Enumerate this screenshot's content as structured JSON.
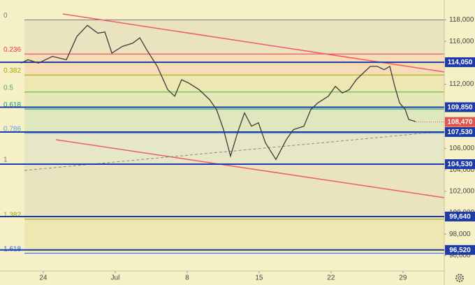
{
  "chart_data": {
    "type": "line",
    "color": "#3a3a3a",
    "x": [
      21.83,
      22.51,
      23.53,
      24.89,
      26.25,
      27.27,
      28.29,
      29.31,
      29.99,
      30.67,
      31.69,
      32.71,
      33.39,
      34.07,
      35.09,
      36.11,
      36.79,
      37.46,
      38.14,
      39.16,
      40.18,
      40.86,
      41.54,
      42.22,
      42.9,
      43.58,
      44.26,
      44.94,
      45.62,
      46.64,
      47.66,
      48.34,
      49.36,
      50.04,
      50.72,
      51.74,
      52.42,
      53.1,
      53.78,
      54.46,
      55.14,
      55.82,
      56.5,
      57.18,
      57.72,
      58.2,
      58.67,
      59.22,
      59.56,
      60.24
    ],
    "values": [
      113970,
      114280,
      113970,
      114590,
      114280,
      116450,
      117500,
      116760,
      116880,
      114900,
      115520,
      115830,
      116330,
      115210,
      113660,
      111490,
      110870,
      112420,
      112110,
      111490,
      110560,
      109630,
      107760,
      105280,
      107450,
      109320,
      108070,
      108390,
      106520,
      104970,
      106830,
      107760,
      108070,
      109630,
      110250,
      110870,
      111800,
      111180,
      111490,
      112420,
      113040,
      113660,
      113660,
      113350,
      113660,
      111800,
      110250,
      109630,
      108700,
      108510
    ],
    "xlim": [
      19.79,
      63.02
    ],
    "ylim": [
      94550,
      119860
    ],
    "xticks": [
      24,
      {
        "value": 31,
        "label": "Jul"
      },
      {
        "value": 38,
        "label": "8"
      },
      {
        "value": 45,
        "label": "15"
      },
      {
        "value": 52,
        "label": "22"
      },
      {
        "value": 59,
        "label": "29"
      }
    ],
    "yticks": [
      {
        "value": 96000,
        "label": "96,000"
      },
      {
        "value": 98000,
        "label": "98,000"
      },
      {
        "value": 100000,
        "label": "100,000"
      },
      {
        "value": 102000,
        "label": "102,000"
      },
      {
        "value": 104000,
        "label": "104,000"
      },
      {
        "value": 106000,
        "label": "106,000"
      },
      {
        "value": 112000,
        "label": "112,000"
      },
      {
        "value": 116000,
        "label": "116,000"
      },
      {
        "value": 118000,
        "label": "118,000"
      }
    ],
    "levels": [
      {
        "value": 114050,
        "label": "114,050"
      },
      {
        "value": 109850,
        "label": "109,850"
      },
      {
        "value": 107530,
        "label": "107,530"
      },
      {
        "value": 104530,
        "label": "104,530"
      },
      {
        "value": 99640,
        "label": "99,640"
      },
      {
        "value": 96520,
        "label": "96,520"
      }
    ],
    "level_color": "#1c3aa9",
    "last_price": {
      "value": 108470,
      "label": "108,470"
    },
    "last_price_color": "#e0524a",
    "fib": [
      {
        "ratio": "0",
        "price": 118000,
        "color": "#787b86"
      },
      {
        "ratio": "0.236",
        "price": 114821,
        "color": "#f23645"
      },
      {
        "ratio": "0.382",
        "price": 112855,
        "color": "#9fa800"
      },
      {
        "ratio": "0.5",
        "price": 111265,
        "color": "#4caf50"
      },
      {
        "ratio": "0.618",
        "price": 109676,
        "color": "#089981"
      },
      {
        "ratio": "0.786",
        "price": 107413,
        "color": "#5aa0d8"
      },
      {
        "ratio": "1",
        "price": 104530,
        "color": "#787b86"
      },
      {
        "ratio": "1.382",
        "price": 99385,
        "color": "#9fa800"
      },
      {
        "ratio": "1.618",
        "price": 96206,
        "color": "#2962ff"
      }
    ]
  }
}
